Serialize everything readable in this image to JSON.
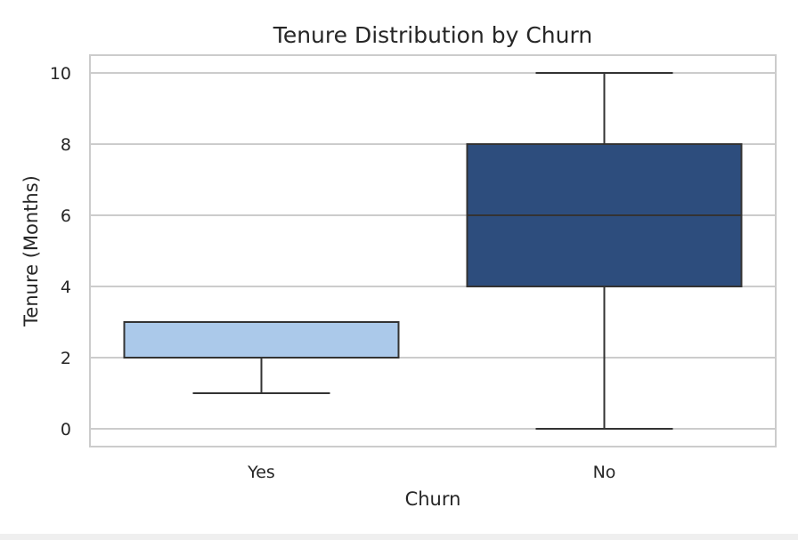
{
  "chart_data": {
    "type": "box",
    "title": "Tenure Distribution by Churn",
    "xlabel": "Churn",
    "ylabel": "Tenure (Months)",
    "categories": [
      "Yes",
      "No"
    ],
    "y_ticks": [
      0,
      2,
      4,
      6,
      8,
      10
    ],
    "ylim": [
      -0.5,
      10.5
    ],
    "grid": true,
    "boxes": [
      {
        "category": "Yes",
        "whisker_low": 1,
        "q1": 2,
        "median": 2,
        "q3": 3,
        "whisker_high": 3,
        "color": "#abc9ea"
      },
      {
        "category": "No",
        "whisker_low": 0,
        "q1": 4,
        "median": 6,
        "q3": 8,
        "whisker_high": 10,
        "color": "#2d4d7d"
      }
    ]
  }
}
